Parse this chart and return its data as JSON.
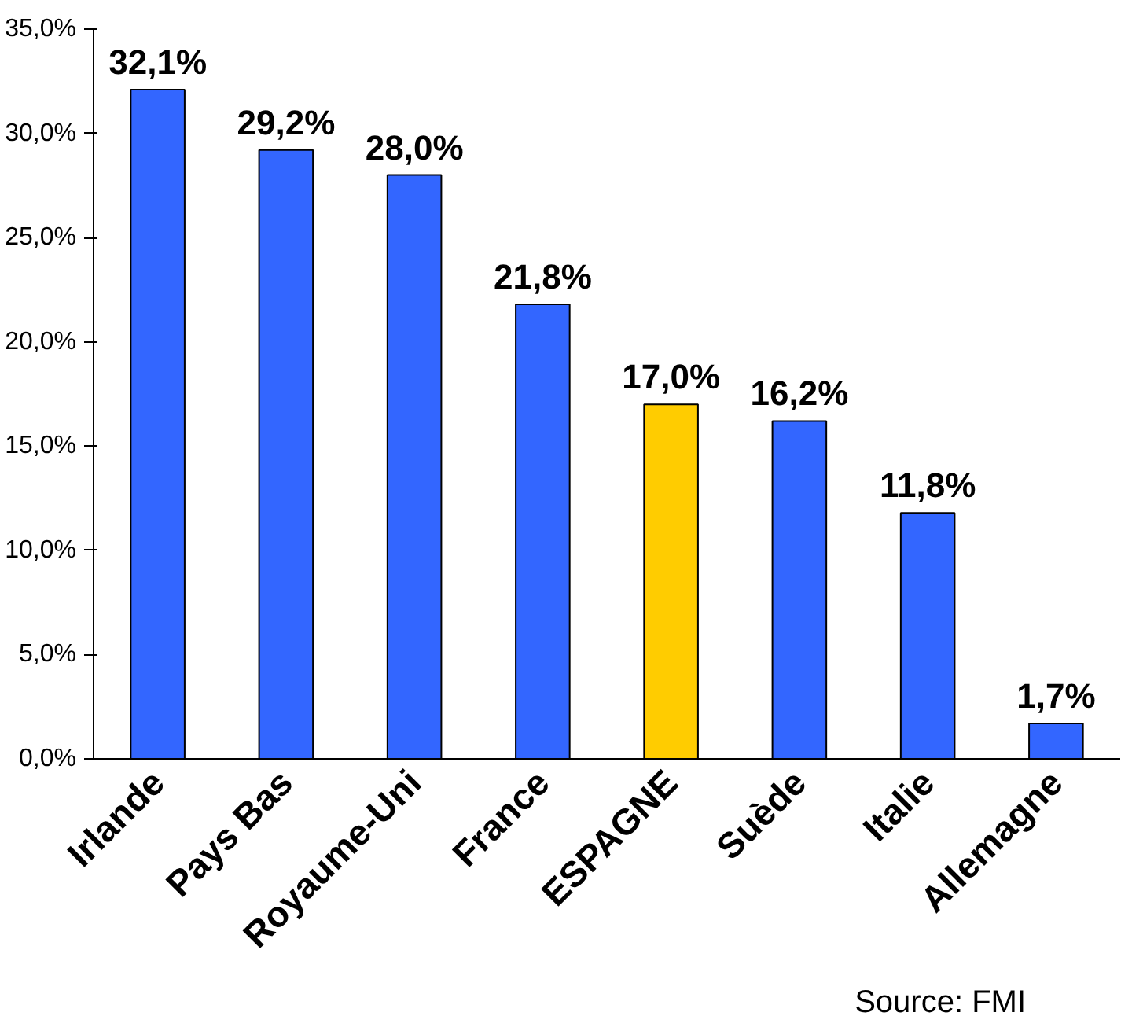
{
  "chart_data": {
    "type": "bar",
    "categories": [
      "Irlande",
      "Pays Bas",
      "Royaume-Uni",
      "France",
      "ESPAGNE",
      "Suède",
      "Italie",
      "Allemagne"
    ],
    "values": [
      32.1,
      29.2,
      28.0,
      21.8,
      17.0,
      16.2,
      11.8,
      1.7
    ],
    "colors": [
      "#3366ff",
      "#3366ff",
      "#3366ff",
      "#3366ff",
      "#ffcc00",
      "#3366ff",
      "#3366ff",
      "#3366ff"
    ],
    "value_labels": [
      "32,1%",
      "29,2%",
      "28,0%",
      "21,8%",
      "17,0%",
      "16,2%",
      "11,8%",
      "1,7%"
    ],
    "ylim": [
      0,
      35
    ],
    "yticks": [
      {
        "value": 0,
        "label": "0,0%"
      },
      {
        "value": 5,
        "label": "5,0%"
      },
      {
        "value": 10,
        "label": "10,0%"
      },
      {
        "value": 15,
        "label": "15,0%"
      },
      {
        "value": 20,
        "label": "20,0%"
      },
      {
        "value": 25,
        "label": "25,0%"
      },
      {
        "value": 30,
        "label": "30,0%"
      },
      {
        "value": 35,
        "label": "35,0%"
      }
    ],
    "grid": false,
    "annotations": [
      "Source: FMI"
    ]
  }
}
